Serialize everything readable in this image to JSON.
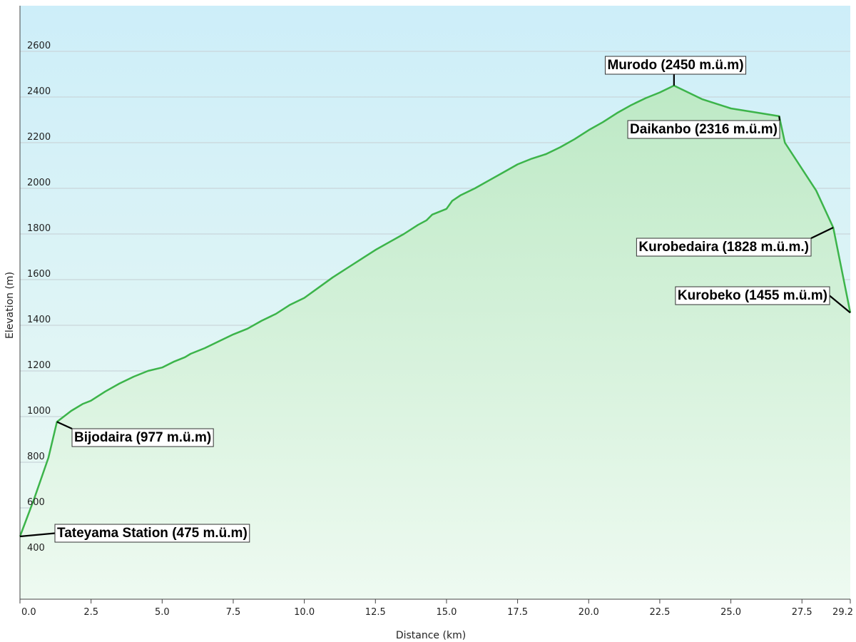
{
  "chart_data": {
    "type": "area",
    "title": "",
    "xlabel": "Distance  (km)",
    "ylabel": "Elevation (m)",
    "xlim": [
      0,
      29.2
    ],
    "ylim": [
      200,
      2800
    ],
    "x_ticks": [
      "0.0",
      "2.5",
      "5.0",
      "7.5",
      "10.0",
      "12.5",
      "15.0",
      "17.5",
      "20.0",
      "22.5",
      "25.0",
      "27.5",
      "29.2"
    ],
    "y_ticks": [
      400,
      600,
      800,
      1000,
      1200,
      1400,
      1600,
      1800,
      2000,
      2200,
      2400,
      2600
    ],
    "grid": true,
    "colors": {
      "line": "#3cb44a",
      "fill_top": "#b8e6c0",
      "fill_bottom": "#eaf8ee",
      "bg_top": "#cdeef9",
      "bg_bottom": "#eefaf2"
    },
    "series": [
      {
        "x": [
          0,
          0.5,
          1.0,
          1.3,
          1.8,
          2.2,
          2.5,
          3.0,
          3.5,
          4.0,
          4.5,
          5.0,
          5.4,
          5.8,
          6.0,
          6.5,
          7.0,
          7.5,
          8.0,
          8.5,
          9.0,
          9.5,
          10.0,
          10.5,
          11.0,
          11.5,
          12.0,
          12.5,
          13.0,
          13.5,
          14.0,
          14.3,
          14.5,
          15.0,
          15.2,
          15.5,
          16.0,
          16.5,
          17.0,
          17.5,
          18.0,
          18.5,
          19.0,
          19.5,
          20.0,
          20.5,
          21.0,
          21.5,
          22.0,
          22.5,
          23.0,
          23.5,
          24.0,
          25.0,
          26.0,
          26.7,
          26.9,
          28.0,
          28.6,
          29.2
        ],
        "y": [
          475,
          640,
          820,
          977,
          1025,
          1055,
          1070,
          1110,
          1145,
          1175,
          1200,
          1215,
          1240,
          1260,
          1275,
          1300,
          1330,
          1360,
          1385,
          1420,
          1450,
          1490,
          1520,
          1565,
          1610,
          1650,
          1690,
          1730,
          1765,
          1800,
          1840,
          1860,
          1885,
          1910,
          1945,
          1970,
          2000,
          2035,
          2070,
          2105,
          2130,
          2150,
          2180,
          2215,
          2255,
          2290,
          2330,
          2365,
          2395,
          2420,
          2450,
          2420,
          2390,
          2350,
          2330,
          2316,
          2200,
          1990,
          1828,
          1455
        ]
      }
    ],
    "annotations": [
      {
        "label": "Tateyama Station (475 m.ü.m)",
        "x": 0,
        "y": 475
      },
      {
        "label": "Bijodaira (977 m.ü.m)",
        "x": 1.3,
        "y": 977
      },
      {
        "label": "Murodo (2450 m.ü.m)",
        "x": 23.0,
        "y": 2450
      },
      {
        "label": "Daikanbo (2316 m.ü.m)",
        "x": 26.7,
        "y": 2316
      },
      {
        "label": "Kurobedaira (1828 m.ü.m.)",
        "x": 28.6,
        "y": 1828
      },
      {
        "label": "Kurobeko (1455 m.ü.m)",
        "x": 29.2,
        "y": 1455
      }
    ]
  }
}
